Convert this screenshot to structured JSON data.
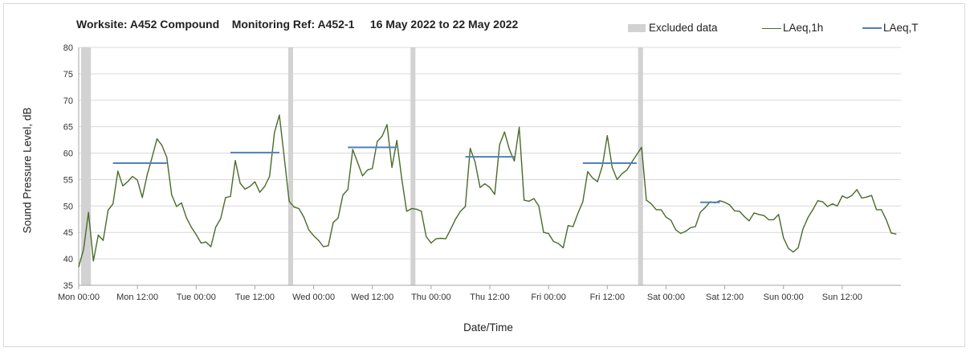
{
  "chart_data": {
    "type": "line",
    "title": "Worksite: A452 Compound    Monitoring Ref: A452-1     16 May 2022 to 22 May 2022",
    "xlabel": "Date/Time",
    "ylabel": "Sound Pressure Level, dB",
    "ylim": [
      35,
      80
    ],
    "yticks": [
      35,
      40,
      45,
      50,
      55,
      60,
      65,
      70,
      75,
      80
    ],
    "xlim_hours": [
      0,
      168
    ],
    "xticks": [
      {
        "hour": 0,
        "label": "Mon 00:00"
      },
      {
        "hour": 12,
        "label": "Mon 12:00"
      },
      {
        "hour": 24,
        "label": "Tue 00:00"
      },
      {
        "hour": 36,
        "label": "Tue 12:00"
      },
      {
        "hour": 48,
        "label": "Wed 00:00"
      },
      {
        "hour": 60,
        "label": "Wed 12:00"
      },
      {
        "hour": 72,
        "label": "Thu 00:00"
      },
      {
        "hour": 84,
        "label": "Thu 12:00"
      },
      {
        "hour": 96,
        "label": "Fri 00:00"
      },
      {
        "hour": 108,
        "label": "Fri 12:00"
      },
      {
        "hour": 120,
        "label": "Sat 00:00"
      },
      {
        "hour": 132,
        "label": "Sat 12:00"
      },
      {
        "hour": 144,
        "label": "Sun 00:00"
      },
      {
        "hour": 156,
        "label": "Sun 12:00"
      }
    ],
    "grid": true,
    "legend": [
      {
        "label": "Excluded data",
        "kind": "bar",
        "color": "#d2d2d2"
      },
      {
        "label": "LAeq,1h",
        "kind": "line",
        "color": "#4a6b2a"
      },
      {
        "label": "LAeq,T",
        "kind": "line",
        "color": "#4f81bd"
      }
    ],
    "excluded_hours": [
      [
        0.5,
        2.5
      ],
      [
        42.8,
        43.8
      ],
      [
        67.8,
        68.8
      ],
      [
        114.3,
        115.3
      ]
    ],
    "series": [
      {
        "name": "LAeq,1h",
        "color": "#4a6b2a",
        "values": [
          38.5,
          41.8,
          48.8,
          39.6,
          44.5,
          43.5,
          49.2,
          50.4,
          56.6,
          53.8,
          54.6,
          55.6,
          54.9,
          51.6,
          55.9,
          59.2,
          62.7,
          61.5,
          59.2,
          52.1,
          49.9,
          50.6,
          47.8,
          46.0,
          44.6,
          43.0,
          43.2,
          42.3,
          46.0,
          47.6,
          51.6,
          51.8,
          58.6,
          54.3,
          53.2,
          53.7,
          54.6,
          52.6,
          53.7,
          55.6,
          63.9,
          67.2,
          59.2,
          50.9,
          49.8,
          49.5,
          47.9,
          45.5,
          44.4,
          43.5,
          42.3,
          42.5,
          46.9,
          47.7,
          52.1,
          53.1,
          60.7,
          58.2,
          55.7,
          56.8,
          57.1,
          62.2,
          63.2,
          65.4,
          57.3,
          62.4,
          55.2,
          49.0,
          49.5,
          49.4,
          49.0,
          44.2,
          43.0,
          43.8,
          43.9,
          43.8,
          45.6,
          47.5,
          49.0,
          49.9,
          60.9,
          58.3,
          53.5,
          54.2,
          53.5,
          52.2,
          61.6,
          64.0,
          60.7,
          58.5,
          64.9,
          51.1,
          50.9,
          51.4,
          50.0,
          45.0,
          44.8,
          43.3,
          42.9,
          42.1,
          46.3,
          46.1,
          48.6,
          50.8,
          56.5,
          55.3,
          54.6,
          57.6,
          63.3,
          57.3,
          55.0,
          56.1,
          56.8,
          58.3,
          59.7,
          61.1,
          51.1,
          50.4,
          49.3,
          49.3,
          47.9,
          47.3,
          45.5,
          44.8,
          45.2,
          45.9,
          46.1,
          48.8,
          49.7,
          50.8,
          50.6,
          51.0,
          50.7,
          50.2,
          49.1,
          49.0,
          48.0,
          47.2,
          48.7,
          48.4,
          48.2,
          47.4,
          47.4,
          48.4,
          44.0,
          42.0,
          41.3,
          42.1,
          45.7,
          47.8,
          49.3,
          51.0,
          50.8,
          49.9,
          50.4,
          50.0,
          51.9,
          51.5,
          52.0,
          53.1,
          51.5,
          51.7,
          52.0,
          49.3,
          49.3,
          47.4,
          44.9,
          44.7
        ]
      },
      {
        "name": "LAeq,T",
        "color": "#4f81bd",
        "segments": [
          {
            "from_hour": 7,
            "to_hour": 18,
            "value": 58.1
          },
          {
            "from_hour": 31,
            "to_hour": 41,
            "value": 60.1
          },
          {
            "from_hour": 55,
            "to_hour": 65,
            "value": 61.1
          },
          {
            "from_hour": 79,
            "to_hour": 89,
            "value": 59.3
          },
          {
            "from_hour": 103,
            "to_hour": 114,
            "value": 58.1
          },
          {
            "from_hour": 127,
            "to_hour": 131,
            "value": 50.7
          }
        ]
      }
    ]
  }
}
